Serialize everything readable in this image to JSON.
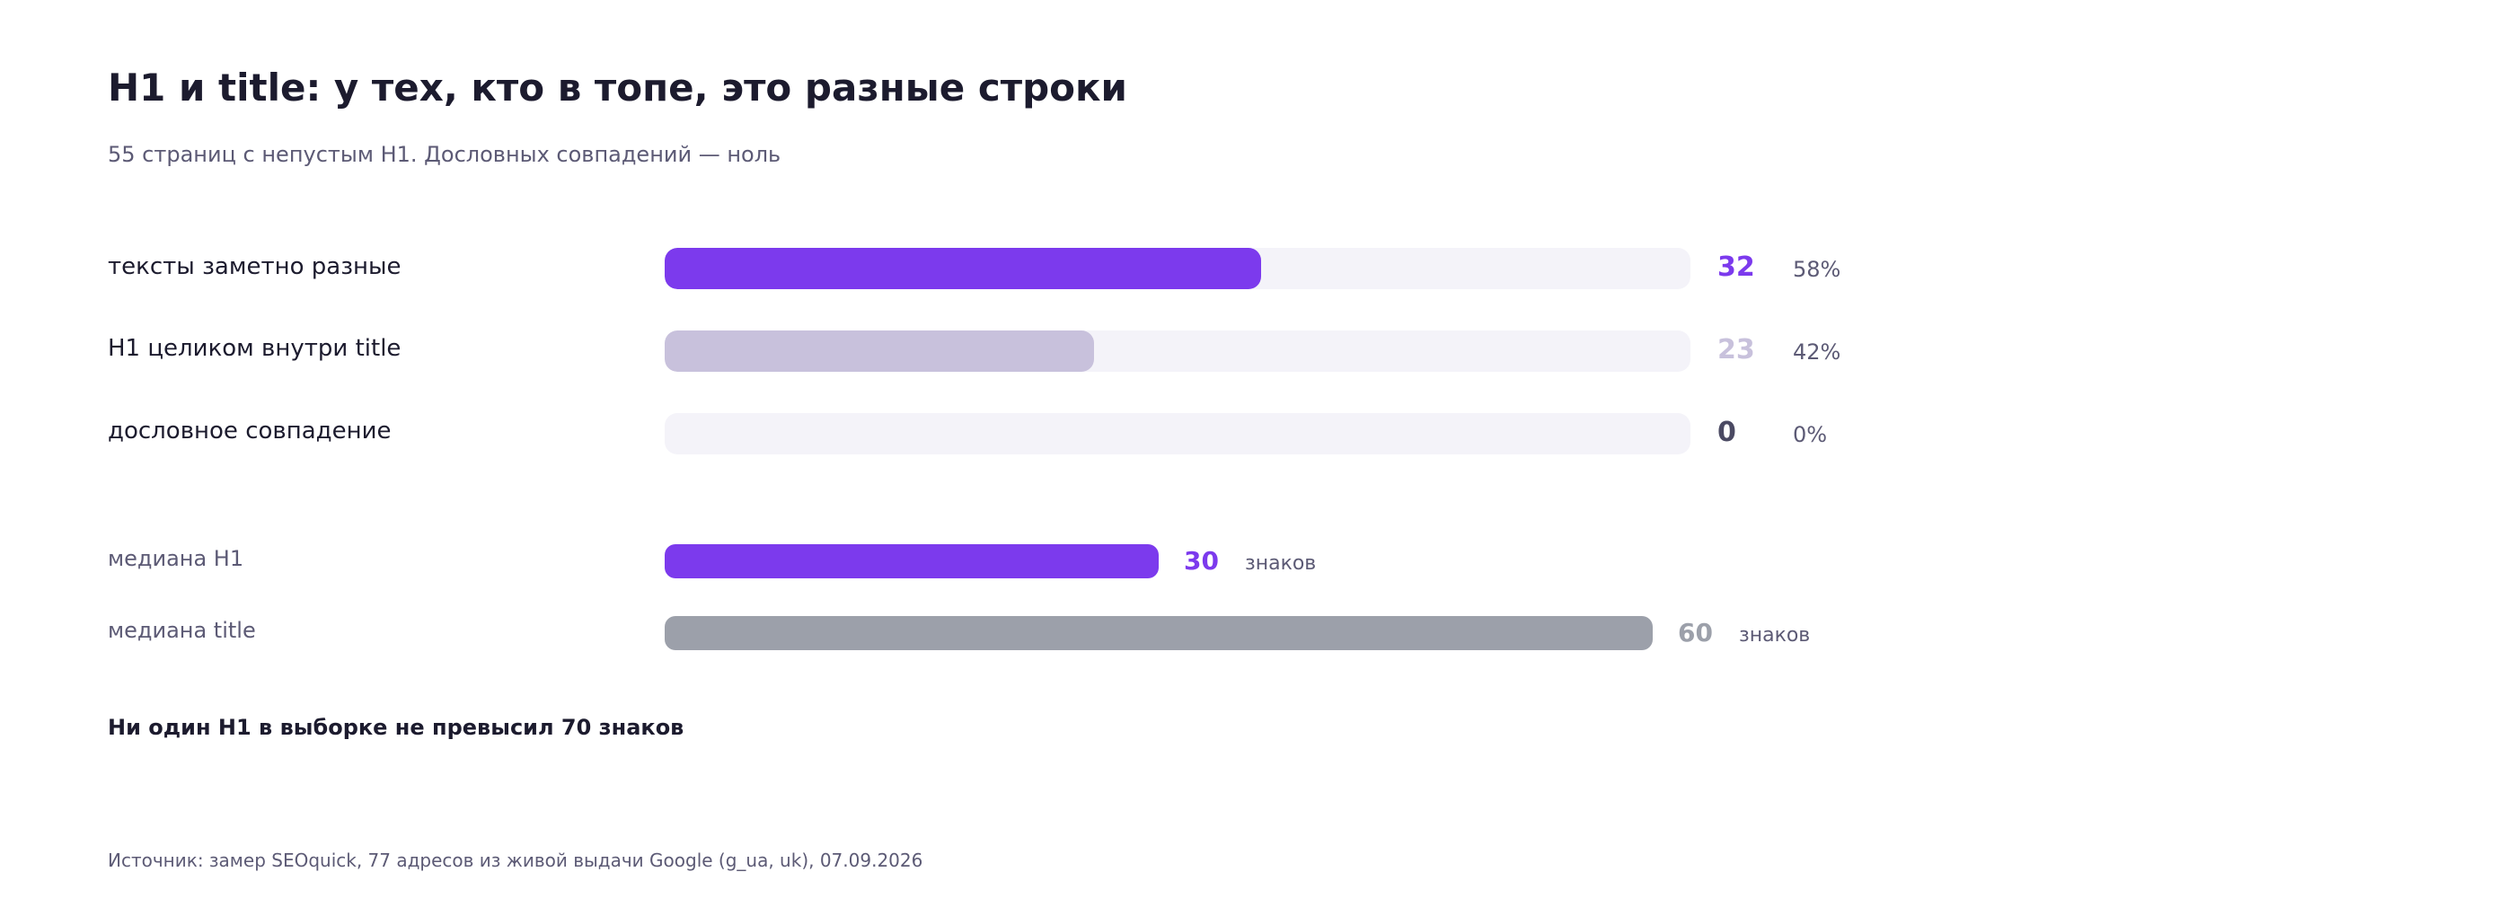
{
  "title": "H1 и title: у тех, кто в топе, это разные строки",
  "subtitle": "55 страниц с непустым H1. Дословных совпадений — ноль",
  "colors": {
    "accent": "#7c3aed",
    "muted": "#c8c1dc",
    "dark": "#4b4a63",
    "gray": "#9ca0aa",
    "track": "#f4f3f9"
  },
  "chart_data": [
    {
      "type": "bar",
      "orientation": "horizontal",
      "categories": [
        "тексты заметно разные",
        "H1 целиком внутри title",
        "дословное совпадение"
      ],
      "values": [
        32,
        23,
        0
      ],
      "percent_labels": [
        "58%",
        "42%",
        "0%"
      ],
      "total": 55,
      "colors": [
        "#7c3aed",
        "#c8c1dc",
        "#4b4a63"
      ]
    },
    {
      "type": "bar",
      "orientation": "horizontal",
      "categories": [
        "медиана H1",
        "медиана title"
      ],
      "values": [
        30,
        60
      ],
      "unit": "знаков",
      "colors": [
        "#7c3aed",
        "#9ca0aa"
      ]
    }
  ],
  "note": "Ни один H1 в выборке не превысил 70 знаков",
  "source": "Источник: замер SEOquick, 77 адресов из живой выдачи Google (g_ua, uk), 07.09.2026"
}
